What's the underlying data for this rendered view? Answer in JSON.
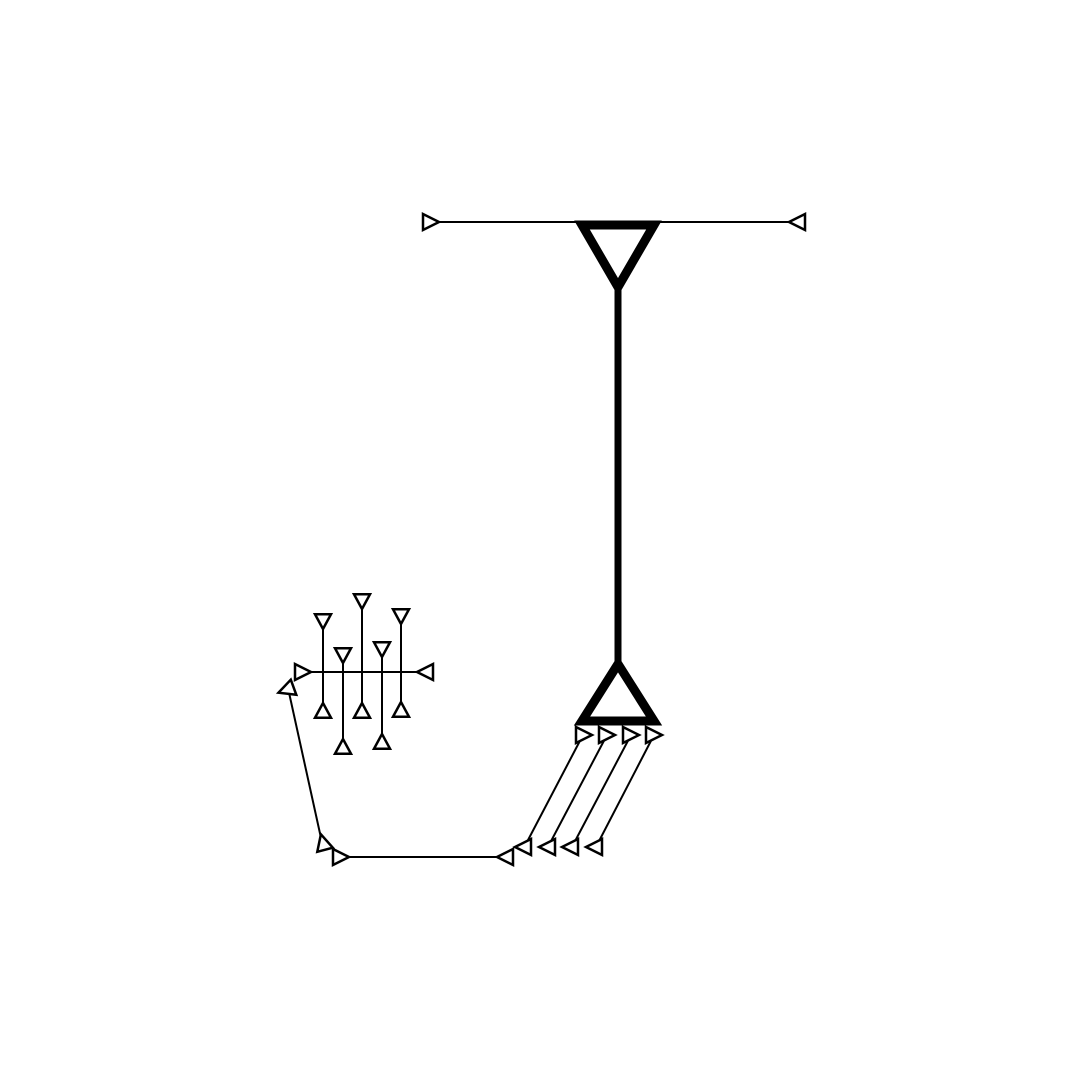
{
  "diagram": {
    "background_color": "#ffffff",
    "stroke_color": "#000000",
    "fill_color": "#ffffff",
    "text_labels": [],
    "icon_semantics": {
      "connector_marker": "triangle-arrow-icon",
      "large_marker": "triangle-icon"
    }
  }
}
